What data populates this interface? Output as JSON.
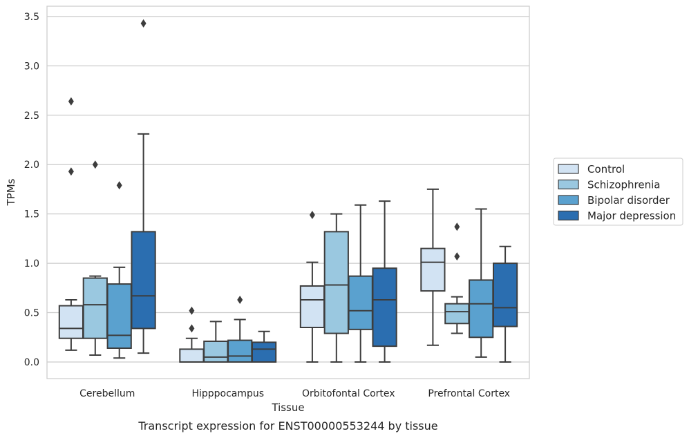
{
  "chart_data": {
    "type": "boxplot",
    "xlabel": "Tissue",
    "ylabel": "TPMs",
    "ylim": [
      -0.17,
      3.6
    ],
    "yticks": [
      0.0,
      0.5,
      1.0,
      1.5,
      2.0,
      2.5,
      3.0,
      3.5
    ],
    "ytick_labels": [
      "0.0",
      "0.5",
      "1.0",
      "1.5",
      "2.0",
      "2.5",
      "3.0",
      "3.5"
    ],
    "grid": "horizontal",
    "legend_position": "right",
    "categories": [
      "Cerebellum",
      "Hipppocampus",
      "Orbitofontal Cortex",
      "Prefrontal Cortex"
    ],
    "caption": "Transcript expression for ENST00000553244 by tissue",
    "series": [
      {
        "name": "Control",
        "color": "#d2e3f3",
        "boxes": [
          {
            "whislo": 0.12,
            "q1": 0.24,
            "med": 0.34,
            "q3": 0.57,
            "whishi": 0.63,
            "fliers": [
              1.93,
              2.64
            ]
          },
          {
            "whislo": 0.0,
            "q1": 0.0,
            "med": 0.0,
            "q3": 0.13,
            "whishi": 0.24,
            "fliers": [
              0.34,
              0.52
            ]
          },
          {
            "whislo": 0.0,
            "q1": 0.35,
            "med": 0.63,
            "q3": 0.77,
            "whishi": 1.01,
            "fliers": [
              1.49
            ]
          },
          {
            "whislo": 0.17,
            "q1": 0.72,
            "med": 1.01,
            "q3": 1.15,
            "whishi": 1.75,
            "fliers": []
          }
        ]
      },
      {
        "name": "Schizophrenia",
        "color": "#9ac8e0",
        "boxes": [
          {
            "whislo": 0.07,
            "q1": 0.24,
            "med": 0.58,
            "q3": 0.85,
            "whishi": 0.87,
            "fliers": [
              2.0
            ]
          },
          {
            "whislo": 0.0,
            "q1": 0.0,
            "med": 0.05,
            "q3": 0.21,
            "whishi": 0.41,
            "fliers": []
          },
          {
            "whislo": 0.0,
            "q1": 0.29,
            "med": 0.78,
            "q3": 1.32,
            "whishi": 1.5,
            "fliers": []
          },
          {
            "whislo": 0.29,
            "q1": 0.39,
            "med": 0.51,
            "q3": 0.59,
            "whishi": 0.66,
            "fliers": [
              1.07,
              1.37
            ]
          }
        ]
      },
      {
        "name": "Bipolar disorder",
        "color": "#5aa1cf",
        "boxes": [
          {
            "whislo": 0.04,
            "q1": 0.14,
            "med": 0.27,
            "q3": 0.79,
            "whishi": 0.96,
            "fliers": [
              1.79
            ]
          },
          {
            "whislo": 0.0,
            "q1": 0.0,
            "med": 0.06,
            "q3": 0.22,
            "whishi": 0.43,
            "fliers": [
              0.63
            ]
          },
          {
            "whislo": 0.0,
            "q1": 0.33,
            "med": 0.52,
            "q3": 0.87,
            "whishi": 1.59,
            "fliers": []
          },
          {
            "whislo": 0.05,
            "q1": 0.25,
            "med": 0.59,
            "q3": 0.83,
            "whishi": 1.55,
            "fliers": []
          }
        ]
      },
      {
        "name": "Major depression",
        "color": "#2b6eb0",
        "boxes": [
          {
            "whislo": 0.09,
            "q1": 0.34,
            "med": 0.67,
            "q3": 1.32,
            "whishi": 2.31,
            "fliers": [
              3.43
            ]
          },
          {
            "whislo": 0.0,
            "q1": 0.0,
            "med": 0.13,
            "q3": 0.2,
            "whishi": 0.31,
            "fliers": []
          },
          {
            "whislo": 0.0,
            "q1": 0.16,
            "med": 0.63,
            "q3": 0.95,
            "whishi": 1.63,
            "fliers": []
          },
          {
            "whislo": 0.0,
            "q1": 0.36,
            "med": 0.55,
            "q3": 1.0,
            "whishi": 1.17,
            "fliers": []
          }
        ]
      }
    ]
  }
}
